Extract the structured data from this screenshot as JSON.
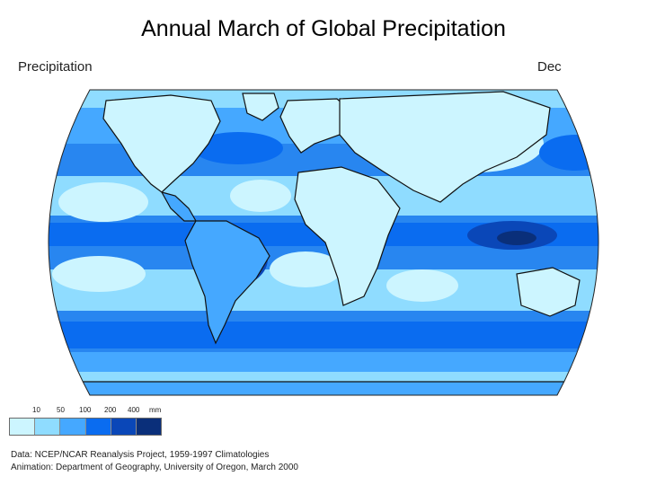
{
  "title": "Annual March of Global Precipitation",
  "map_header": {
    "variable": "Precipitation",
    "month": "Dec"
  },
  "legend": {
    "ticks": [
      "10",
      "50",
      "100",
      "200",
      "400"
    ],
    "unit": "mm",
    "colors": [
      "#ccf5ff",
      "#8fdcff",
      "#45a8ff",
      "#0a6cf0",
      "#0a47b8",
      "#0a2f7a"
    ]
  },
  "map_colors": {
    "ocean_base": "#2886f0",
    "very_dry": "#ccf5ff",
    "dry": "#8fdcff",
    "moderate": "#45a8ff",
    "wet": "#0a6cf0",
    "very_wet": "#0a47b8",
    "extreme": "#0a2f7a",
    "coastline": "#111111"
  },
  "credits": {
    "line1": "Data:  NCEP/NCAR Reanalysis Project, 1959-1997 Climatologies",
    "line2": "Animation:  Department of Geography, University of Oregon, March 2000"
  }
}
